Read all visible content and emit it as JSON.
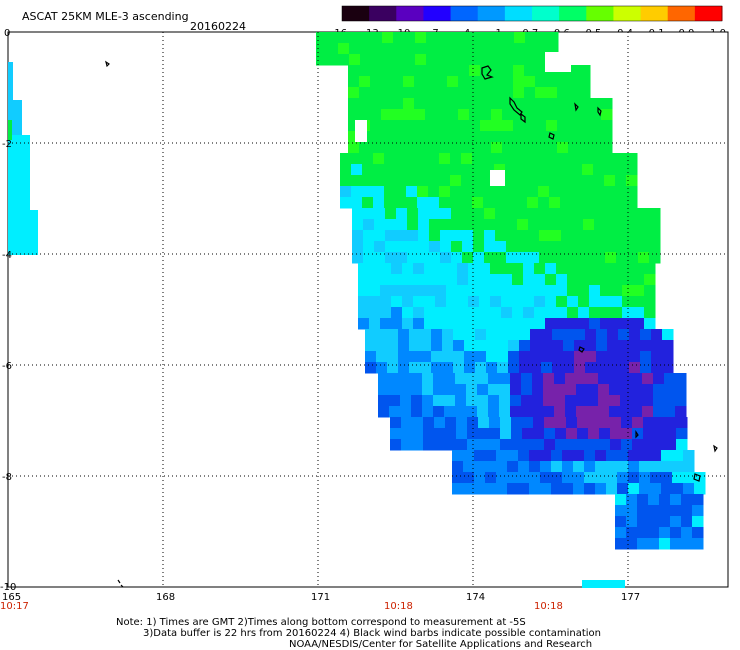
{
  "header": {
    "title": "ASCAT 25KM MLE-3 ascending",
    "date": "20160224"
  },
  "colorbar": {
    "labels": [
      "-16",
      "-13",
      "-10",
      "-7",
      "-4",
      "-1",
      "-0.7",
      "-0.6",
      "-0.5",
      "-0.4",
      "-0.1",
      "0.0",
      "1.0"
    ],
    "colors": [
      "#1a0010",
      "#3a0060",
      "#5a00c0",
      "#2200ff",
      "#0066ff",
      "#0099ff",
      "#00ddff",
      "#00ffcc",
      "#00ff66",
      "#66ff00",
      "#ccff00",
      "#ffcc00",
      "#ff6600",
      "#ff0000"
    ]
  },
  "map": {
    "lat_labels": [
      "0",
      "-2",
      "-4",
      "-6",
      "-8",
      "-10"
    ],
    "lon_labels": [
      "165",
      "168",
      "171",
      "174",
      "177"
    ],
    "time_labels": [
      "10:17",
      "10:18",
      "10:18"
    ],
    "palette": {
      "green": "#00ee44",
      "lime": "#22ff22",
      "cyan": "#00eeff",
      "sky": "#11ccff",
      "blue": "#0088ff",
      "mid": "#0055ee",
      "deep": "#2222dd",
      "purple": "#7722aa"
    }
  },
  "notes": {
    "line1": "Note: 1) Times are GMT 2)Times along bottom correspond to measurement at -5S",
    "line2": "3)Data buffer is 22 hrs from 20160224 4) Black wind barbs indicate possible contamination",
    "line3": "NOAA/NESDIS/Center for Satellite Applications and Research"
  }
}
